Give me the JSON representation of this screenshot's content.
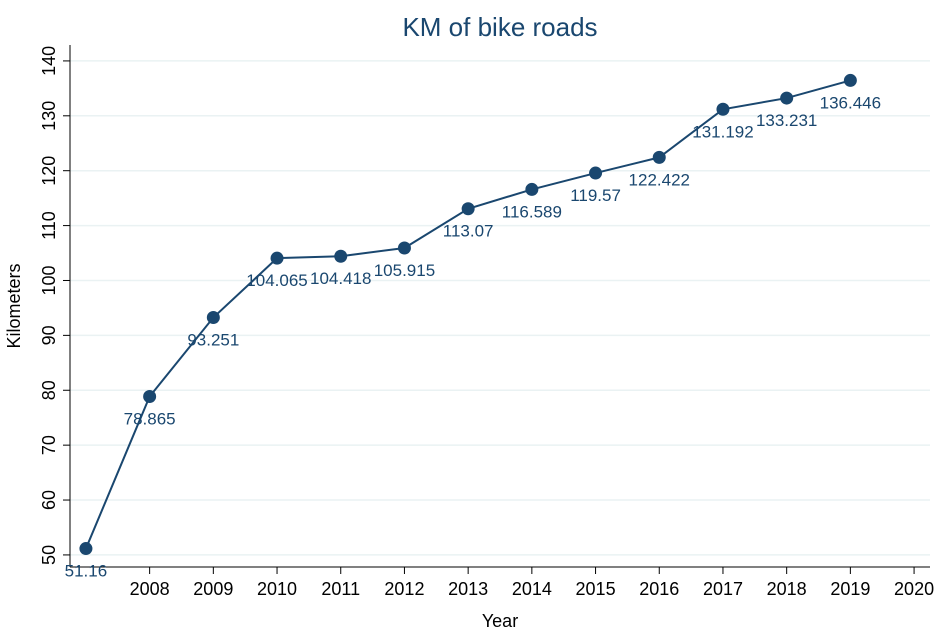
{
  "chart_data": {
    "type": "line",
    "title": "KM of bike roads",
    "x_label": "Year",
    "y_label": "Kilometers",
    "x": [
      2007,
      2008,
      2009,
      2010,
      2011,
      2012,
      2013,
      2014,
      2015,
      2016,
      2017,
      2018,
      2019
    ],
    "series": [
      {
        "name": "Kilometers",
        "color": "#1a476f",
        "values": [
          51.16,
          78.865,
          93.251,
          104.065,
          104.418,
          105.915,
          113.07,
          116.589,
          119.57,
          122.422,
          131.192,
          133.231,
          136.446
        ]
      }
    ],
    "xlim": [
      2006.75,
      2020.25
    ],
    "xticks": [
      2008,
      2009,
      2010,
      2011,
      2012,
      2013,
      2014,
      2015,
      2016,
      2017,
      2018,
      2019,
      2020
    ],
    "ylim": [
      47.8,
      142.9
    ],
    "yticks": [
      50,
      60,
      70,
      80,
      90,
      100,
      110,
      120,
      130,
      140
    ],
    "grid": true
  }
}
